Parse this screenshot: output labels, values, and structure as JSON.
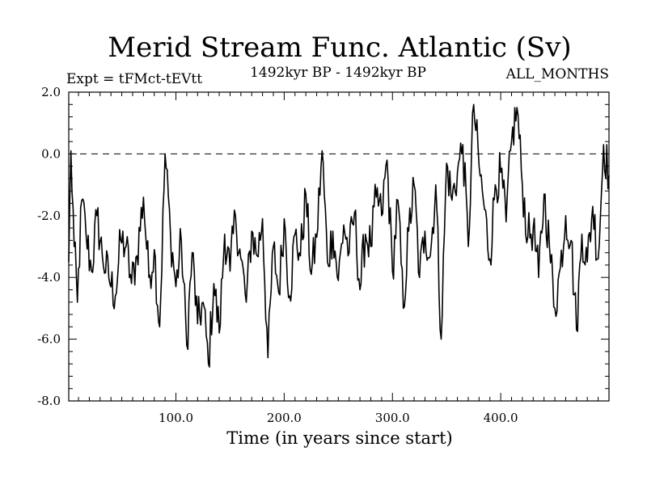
{
  "chart_data": {
    "type": "line",
    "title": "Merid Stream Func. Atlantic (Sv)",
    "subtitle_left": "Expt = tFMct-tEVtt",
    "subtitle_center": "1492kyr BP - 1492kyr BP",
    "subtitle_right": "ALL_MONTHS",
    "xlabel": "Time (in years since start)",
    "ylabel": "",
    "xlim": [
      1,
      500
    ],
    "ylim": [
      -8,
      2
    ],
    "xticks": [
      100,
      200,
      300,
      400
    ],
    "xtick_labels": [
      "100.0",
      "200.0",
      "300.0",
      "400.0"
    ],
    "yticks": [
      2,
      0,
      -2,
      -4,
      -6,
      -8
    ],
    "ytick_labels": [
      "2.0",
      "0.0",
      "-2.0",
      "-4.0",
      "-6.0",
      "-8.0"
    ],
    "reference_line": 0,
    "anchors": [
      [
        1,
        -3.5
      ],
      [
        3,
        0.1
      ],
      [
        6,
        -3.0
      ],
      [
        9,
        -4.8
      ],
      [
        13,
        -1.5
      ],
      [
        17,
        -2.6
      ],
      [
        22,
        -3.8
      ],
      [
        27,
        -2.0
      ],
      [
        32,
        -3.3
      ],
      [
        38,
        -4.0
      ],
      [
        44,
        -4.6
      ],
      [
        49,
        -2.8
      ],
      [
        54,
        -3.0
      ],
      [
        59,
        -4.2
      ],
      [
        64,
        -3.3
      ],
      [
        70,
        -1.4
      ],
      [
        75,
        -4.0
      ],
      [
        80,
        -3.1
      ],
      [
        85,
        -5.6
      ],
      [
        90,
        0.0
      ],
      [
        95,
        -2.6
      ],
      [
        100,
        -4.3
      ],
      [
        105,
        -2.8
      ],
      [
        110,
        -6.2
      ],
      [
        115,
        -3.2
      ],
      [
        120,
        -5.5
      ],
      [
        125,
        -4.8
      ],
      [
        130,
        -6.8
      ],
      [
        135,
        -4.2
      ],
      [
        140,
        -5.8
      ],
      [
        145,
        -2.6
      ],
      [
        150,
        -3.8
      ],
      [
        155,
        -2.0
      ],
      [
        160,
        -3.4
      ],
      [
        165,
        -4.8
      ],
      [
        170,
        -2.5
      ],
      [
        175,
        -3.3
      ],
      [
        180,
        -2.1
      ],
      [
        185,
        -6.6
      ],
      [
        190,
        -3.0
      ],
      [
        195,
        -4.5
      ],
      [
        200,
        -2.1
      ],
      [
        205,
        -4.6
      ],
      [
        210,
        -2.6
      ],
      [
        215,
        -3.3
      ],
      [
        220,
        -1.3
      ],
      [
        225,
        -3.9
      ],
      [
        230,
        -2.7
      ],
      [
        235,
        0.1
      ],
      [
        240,
        -3.5
      ],
      [
        245,
        -2.5
      ],
      [
        250,
        -4.1
      ],
      [
        255,
        -2.3
      ],
      [
        260,
        -3.2
      ],
      [
        265,
        -1.9
      ],
      [
        270,
        -4.4
      ],
      [
        275,
        -2.6
      ],
      [
        280,
        -3.0
      ],
      [
        285,
        -1.4
      ],
      [
        290,
        -2.0
      ],
      [
        295,
        -0.2
      ],
      [
        300,
        -3.8
      ],
      [
        305,
        -1.5
      ],
      [
        310,
        -5.0
      ],
      [
        315,
        -2.5
      ],
      [
        320,
        -1.0
      ],
      [
        325,
        -4.0
      ],
      [
        330,
        -2.5
      ],
      [
        335,
        -3.3
      ],
      [
        340,
        -1.0
      ],
      [
        345,
        -6.0
      ],
      [
        350,
        -0.3
      ],
      [
        355,
        -1.5
      ],
      [
        360,
        -0.6
      ],
      [
        365,
        0.3
      ],
      [
        370,
        -3.0
      ],
      [
        375,
        1.6
      ],
      [
        380,
        -0.4
      ],
      [
        385,
        -1.8
      ],
      [
        390,
        -3.4
      ],
      [
        395,
        -1.0
      ],
      [
        400,
        -0.6
      ],
      [
        405,
        -2.2
      ],
      [
        410,
        0.4
      ],
      [
        415,
        1.5
      ],
      [
        420,
        -1.0
      ],
      [
        425,
        -2.7
      ],
      [
        430,
        -2.4
      ],
      [
        435,
        -4.0
      ],
      [
        440,
        -1.3
      ],
      [
        445,
        -3.0
      ],
      [
        450,
        -5.0
      ],
      [
        455,
        -3.7
      ],
      [
        460,
        -2.0
      ],
      [
        465,
        -2.8
      ],
      [
        470,
        -5.7
      ],
      [
        475,
        -2.6
      ],
      [
        480,
        -3.5
      ],
      [
        485,
        -1.7
      ],
      [
        490,
        -3.4
      ],
      [
        495,
        0.3
      ],
      [
        500,
        -0.7
      ]
    ]
  }
}
